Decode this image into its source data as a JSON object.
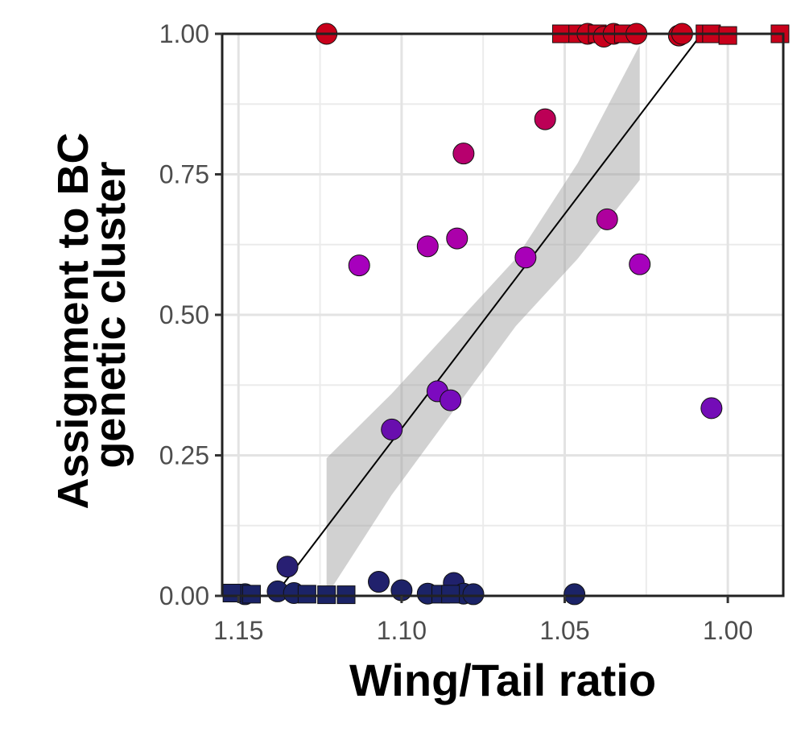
{
  "chart_data": {
    "type": "scatter",
    "title": "",
    "xlabel": "Wing/Tail ratio",
    "ylabel": [
      "Assignment to BC",
      "genetic cluster"
    ],
    "x_reversed": true,
    "xlim": [
      1.155,
      0.983
    ],
    "ylim": [
      0,
      1
    ],
    "xticks": [
      1.15,
      1.1,
      1.05,
      1.0
    ],
    "xtick_labels": [
      "1.15",
      "1.10",
      "1.05",
      "1.00"
    ],
    "yticks": [
      0,
      0.25,
      0.5,
      0.75,
      1.0
    ],
    "ytick_labels": [
      "0.00",
      "0.25",
      "0.50",
      "0.75",
      "1.00"
    ],
    "grid": true,
    "color_scale": {
      "low": "#1a2366",
      "mid": "#a000e0",
      "high": "#c8001a"
    },
    "marker_shapes": [
      "circle",
      "square"
    ],
    "points": [
      {
        "x": 1.123,
        "y": 1.0,
        "shape": "circle"
      },
      {
        "x": 1.051,
        "y": 1.0,
        "shape": "square"
      },
      {
        "x": 1.046,
        "y": 1.0,
        "shape": "square"
      },
      {
        "x": 1.043,
        "y": 1.0,
        "shape": "circle"
      },
      {
        "x": 1.04,
        "y": 1.0,
        "shape": "square"
      },
      {
        "x": 1.038,
        "y": 0.995,
        "shape": "circle"
      },
      {
        "x": 1.035,
        "y": 1.0,
        "shape": "circle"
      },
      {
        "x": 1.032,
        "y": 1.0,
        "shape": "square"
      },
      {
        "x": 1.028,
        "y": 1.0,
        "shape": "circle"
      },
      {
        "x": 1.015,
        "y": 0.997,
        "shape": "circle"
      },
      {
        "x": 1.014,
        "y": 1.0,
        "shape": "circle"
      },
      {
        "x": 1.007,
        "y": 1.0,
        "shape": "square"
      },
      {
        "x": 1.005,
        "y": 1.0,
        "shape": "square"
      },
      {
        "x": 1.0,
        "y": 0.997,
        "shape": "square"
      },
      {
        "x": 0.984,
        "y": 1.0,
        "shape": "square"
      },
      {
        "x": 1.056,
        "y": 0.848,
        "shape": "circle"
      },
      {
        "x": 1.081,
        "y": 0.787,
        "shape": "circle"
      },
      {
        "x": 1.037,
        "y": 0.67,
        "shape": "circle"
      },
      {
        "x": 1.083,
        "y": 0.636,
        "shape": "circle"
      },
      {
        "x": 1.092,
        "y": 0.622,
        "shape": "circle"
      },
      {
        "x": 1.062,
        "y": 0.602,
        "shape": "circle"
      },
      {
        "x": 1.113,
        "y": 0.588,
        "shape": "circle"
      },
      {
        "x": 1.027,
        "y": 0.59,
        "shape": "circle"
      },
      {
        "x": 1.089,
        "y": 0.364,
        "shape": "circle"
      },
      {
        "x": 1.085,
        "y": 0.348,
        "shape": "circle"
      },
      {
        "x": 1.005,
        "y": 0.334,
        "shape": "circle"
      },
      {
        "x": 1.103,
        "y": 0.296,
        "shape": "circle"
      },
      {
        "x": 1.135,
        "y": 0.052,
        "shape": "circle"
      },
      {
        "x": 1.107,
        "y": 0.025,
        "shape": "circle"
      },
      {
        "x": 1.084,
        "y": 0.023,
        "shape": "circle"
      },
      {
        "x": 1.1,
        "y": 0.01,
        "shape": "circle"
      },
      {
        "x": 1.138,
        "y": 0.008,
        "shape": "circle"
      },
      {
        "x": 1.133,
        "y": 0.005,
        "shape": "circle"
      },
      {
        "x": 1.092,
        "y": 0.004,
        "shape": "circle"
      },
      {
        "x": 1.081,
        "y": 0.004,
        "shape": "circle"
      },
      {
        "x": 1.078,
        "y": 0.003,
        "shape": "circle"
      },
      {
        "x": 1.047,
        "y": 0.003,
        "shape": "circle"
      },
      {
        "x": 1.148,
        "y": 0.003,
        "shape": "circle"
      },
      {
        "x": 1.152,
        "y": 0.005,
        "shape": "square"
      },
      {
        "x": 1.146,
        "y": 0.003,
        "shape": "square"
      },
      {
        "x": 1.129,
        "y": 0.003,
        "shape": "square"
      },
      {
        "x": 1.123,
        "y": 0.002,
        "shape": "square"
      },
      {
        "x": 1.117,
        "y": 0.002,
        "shape": "square"
      },
      {
        "x": 1.088,
        "y": 0.003,
        "shape": "square"
      },
      {
        "x": 1.085,
        "y": 0.003,
        "shape": "square"
      }
    ],
    "regression": {
      "line": [
        {
          "x": 1.139,
          "y": 0.0
        },
        {
          "x": 1.008,
          "y": 1.0
        }
      ],
      "ci_band": {
        "x": [
          1.123,
          1.103,
          1.084,
          1.065,
          1.046,
          1.027
        ],
        "lower": [
          0.0,
          0.18,
          0.33,
          0.48,
          0.6,
          0.74
        ],
        "upper": [
          0.245,
          0.36,
          0.48,
          0.6,
          0.77,
          0.98
        ]
      }
    }
  }
}
